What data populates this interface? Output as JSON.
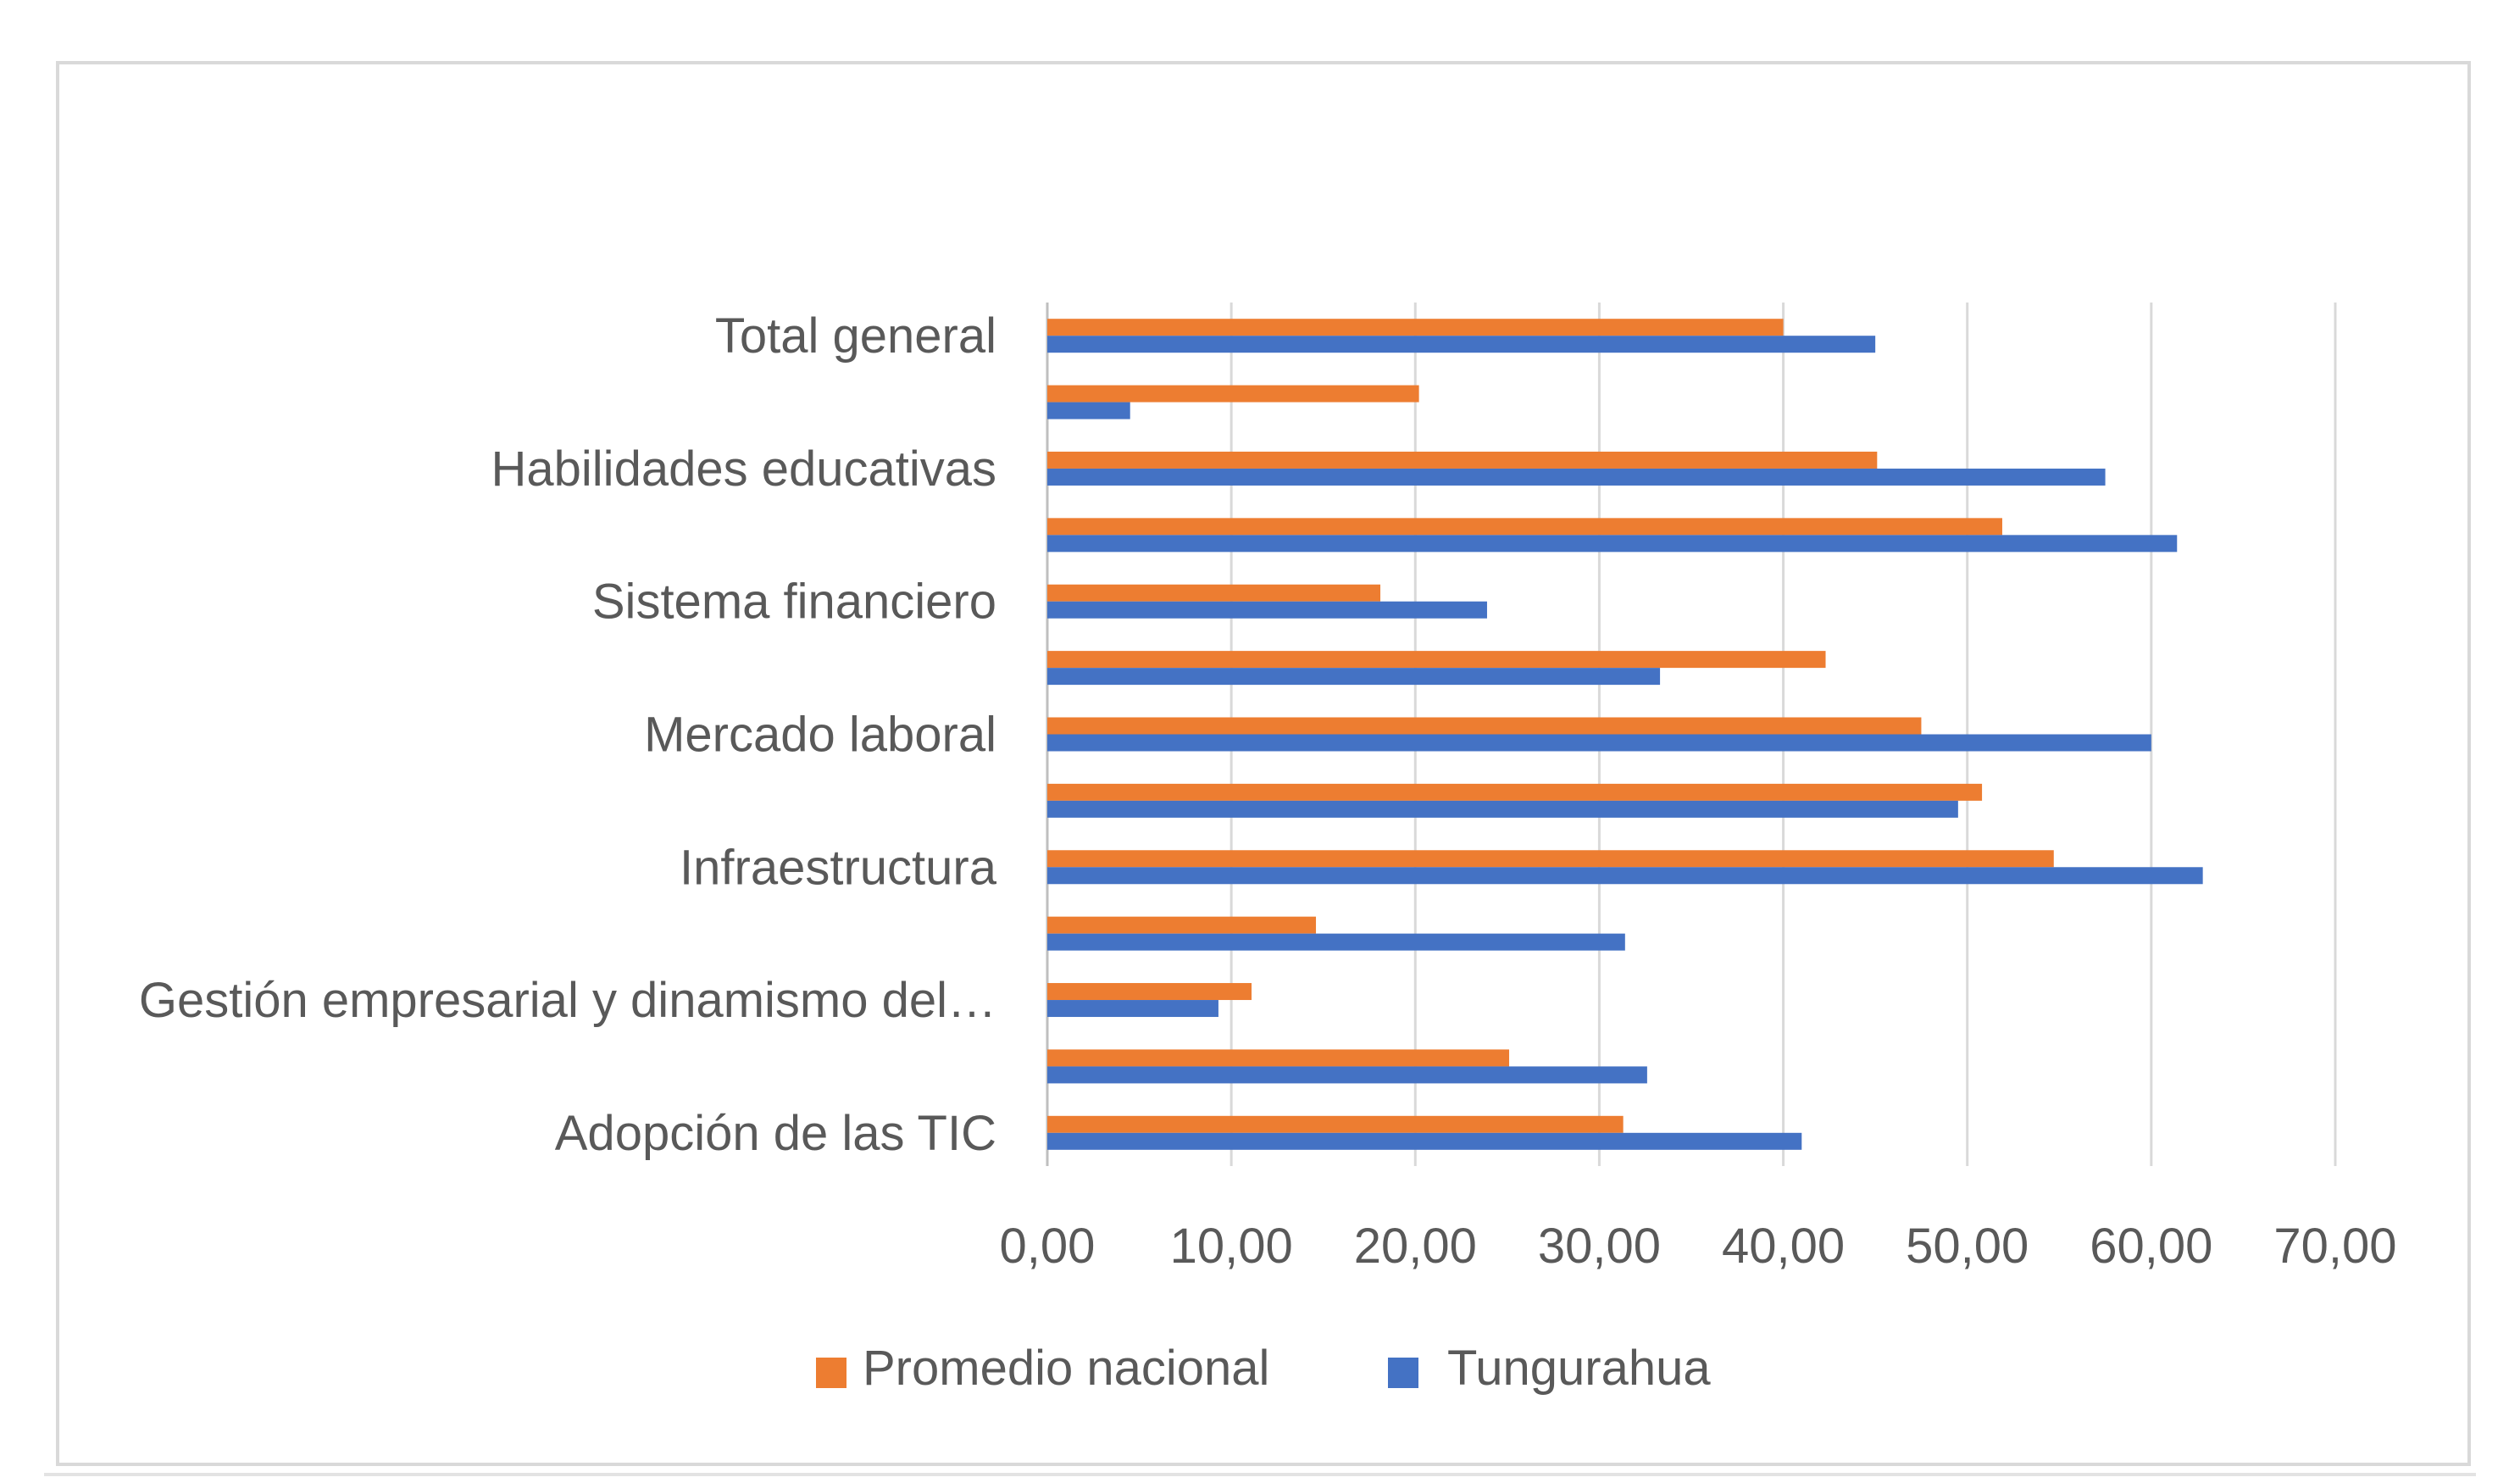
{
  "chart_data": {
    "type": "bar",
    "orientation": "horizontal",
    "categories": [
      "Adopción de las TIC",
      "",
      "Gestión empresarial y dinamismo del…",
      "",
      "Infraestructura",
      "",
      "Mercado laboral",
      "",
      "Sistema financiero",
      "",
      "Habilidades educativas",
      "",
      "Total general"
    ],
    "series": [
      {
        "name": "Promedio nacional",
        "color": "#ed7d31",
        "values": [
          31.3,
          25.1,
          11.1,
          14.6,
          54.7,
          50.8,
          47.5,
          42.3,
          18.1,
          51.9,
          45.1,
          20.2,
          40.0
        ]
      },
      {
        "name": "Tungurahua",
        "color": "#4472c4",
        "values": [
          41.0,
          32.6,
          9.3,
          31.4,
          62.8,
          49.5,
          60.0,
          33.3,
          23.9,
          61.4,
          57.5,
          4.5,
          45.0
        ]
      }
    ],
    "xlim": [
      0,
      70
    ],
    "xticks": [
      "0,00",
      "10,00",
      "20,00",
      "30,00",
      "40,00",
      "50,00",
      "60,00",
      "70,00"
    ],
    "grid": true,
    "legend_position": "bottom"
  }
}
